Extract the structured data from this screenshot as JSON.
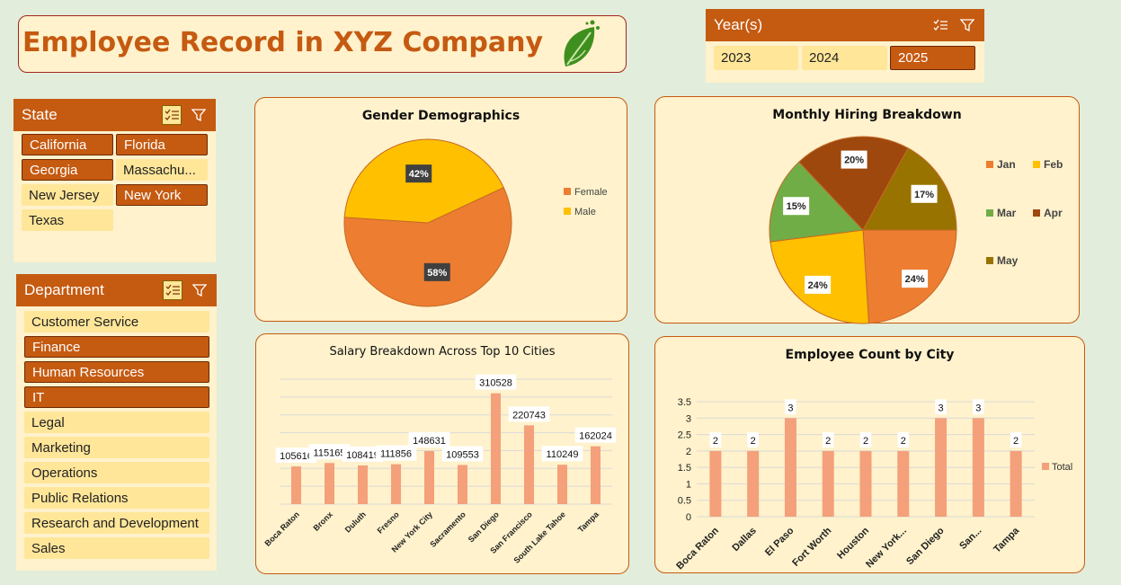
{
  "title": "Employee Record in XYZ Company",
  "years": {
    "header": "Year(s)",
    "items": [
      {
        "label": "2023",
        "selected": false
      },
      {
        "label": "2024",
        "selected": false
      },
      {
        "label": "2025",
        "selected": true
      }
    ]
  },
  "state": {
    "header": "State",
    "items": [
      {
        "label": "California",
        "selected": true
      },
      {
        "label": "Florida",
        "selected": true
      },
      {
        "label": "Georgia",
        "selected": true
      },
      {
        "label": "Massachu...",
        "selected": false
      },
      {
        "label": "New Jersey",
        "selected": false
      },
      {
        "label": "New York",
        "selected": true
      },
      {
        "label": "Texas",
        "selected": false
      }
    ]
  },
  "department": {
    "header": "Department",
    "items": [
      {
        "label": "Customer Service",
        "selected": false
      },
      {
        "label": "Finance",
        "selected": true
      },
      {
        "label": "Human Resources",
        "selected": true
      },
      {
        "label": "IT",
        "selected": true
      },
      {
        "label": "Legal",
        "selected": false
      },
      {
        "label": "Marketing",
        "selected": false
      },
      {
        "label": "Operations",
        "selected": false
      },
      {
        "label": "Public Relations",
        "selected": false
      },
      {
        "label": "Research and Development",
        "selected": false
      },
      {
        "label": "Sales",
        "selected": false
      }
    ]
  },
  "icons": {
    "multi_select": "multi-select-icon",
    "clear_filter": "clear-filter-icon",
    "logo": "leaf-logo-icon"
  },
  "colors": {
    "accent": "#c55a11",
    "panel": "#fff2cc",
    "item": "#ffe699",
    "background": "#e3eddb"
  },
  "chart_data": [
    {
      "type": "pie",
      "title": "Gender Demographics",
      "labels": [
        "Female",
        "Male"
      ],
      "values": [
        58,
        42
      ],
      "data_labels": [
        "58%",
        "42%"
      ],
      "colors": [
        "#ed7d31",
        "#ffc000"
      ],
      "legend": "right"
    },
    {
      "type": "pie",
      "title": "Monthly Hiring Breakdown",
      "labels": [
        "Jan",
        "Feb",
        "Mar",
        "Apr",
        "May"
      ],
      "values": [
        24,
        24,
        15,
        20,
        17
      ],
      "data_labels": [
        "24%",
        "24%",
        "15%",
        "20%",
        "17%"
      ],
      "colors": [
        "#ed7d31",
        "#ffc000",
        "#70ad47",
        "#9e480e",
        "#997300"
      ],
      "legend": "right"
    },
    {
      "type": "bar",
      "title": "Salary Breakdown Across Top 10 Cities",
      "categories": [
        "Boca Raton",
        "Bronx",
        "Duluth",
        "Fresno",
        "New York City",
        "Sacramento",
        "San Diego",
        "San Francisco",
        "South Lake Tahoe",
        "Tampa"
      ],
      "values": [
        105616,
        115165,
        108419,
        111856,
        148631,
        109553,
        310528,
        220743,
        110249,
        162024
      ],
      "data_labels": [
        "105616",
        "115165",
        "108419",
        "111856",
        "148631",
        "109553",
        "310528",
        "220743",
        "110249",
        "162024"
      ],
      "color": "#f4a07a",
      "ylim": [
        0,
        350000
      ],
      "grid": true
    },
    {
      "type": "bar",
      "title": "Employee Count by City",
      "categories": [
        "Boca Raton",
        "Dallas",
        "El Paso",
        "Fort Worth",
        "Houston",
        "New York...",
        "San Diego",
        "San...",
        "Tampa"
      ],
      "series": [
        {
          "name": "Total",
          "values": [
            2,
            2,
            3,
            2,
            2,
            2,
            3,
            3,
            2
          ]
        }
      ],
      "y_ticks": [
        "0",
        "0.5",
        "1",
        "1.5",
        "2",
        "2.5",
        "3",
        "3.5"
      ],
      "ylim": [
        0,
        3.5
      ],
      "color": "#f4a07a",
      "grid": true,
      "legend": "right"
    }
  ]
}
